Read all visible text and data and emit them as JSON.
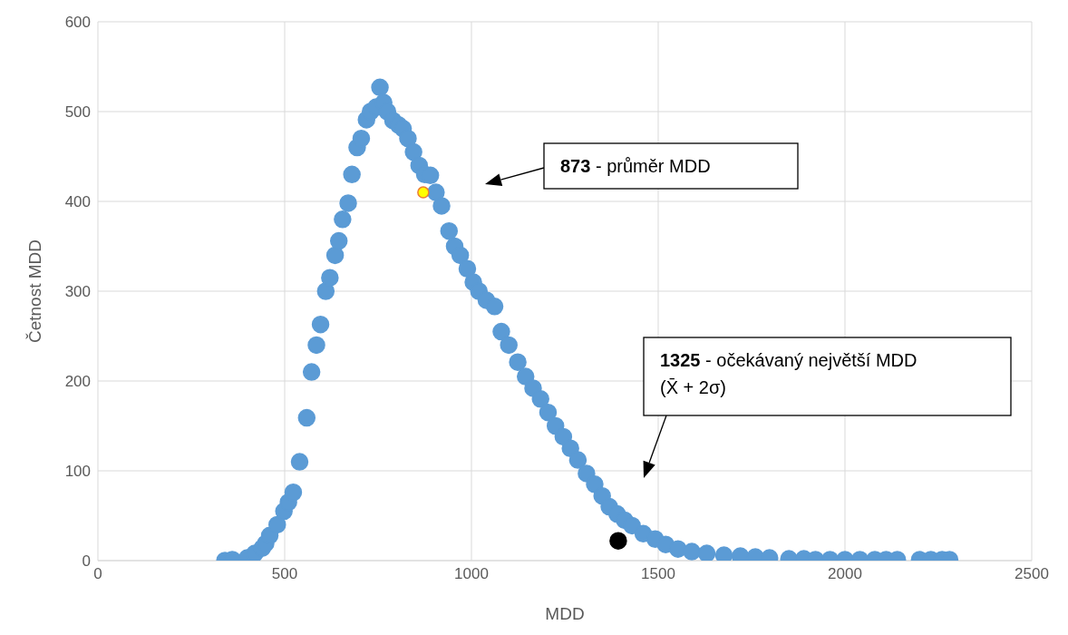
{
  "chart_data": {
    "type": "scatter",
    "xlabel": "MDD",
    "ylabel": "Četnost MDD",
    "xlim": [
      0,
      2500
    ],
    "xticks": [
      0,
      500,
      1000,
      1500,
      2000,
      2500
    ],
    "ylim": [
      0,
      600
    ],
    "yticks": [
      0,
      100,
      200,
      300,
      400,
      500,
      600
    ],
    "grid": true,
    "legend": false,
    "marker": "circle",
    "series": [
      {
        "color": "#5b9bd5",
        "x": [
          340,
          360,
          400,
          420,
          440,
          449,
          460,
          480,
          498,
          510,
          523,
          540,
          559,
          572,
          585,
          596,
          610,
          621,
          635,
          645,
          655,
          670,
          680,
          694,
          705,
          719,
          730,
          745,
          755,
          765,
          775,
          790,
          805,
          817,
          830,
          845,
          860,
          875,
          890,
          905,
          920,
          940,
          955,
          970,
          989,
          1005,
          1020,
          1040,
          1062,
          1080,
          1100,
          1124,
          1145,
          1165,
          1185,
          1205,
          1225,
          1246,
          1265,
          1285,
          1308,
          1330,
          1350,
          1369,
          1390,
          1410,
          1430,
          1460,
          1492,
          1520,
          1553,
          1590,
          1630,
          1676,
          1720,
          1760,
          1798,
          1850,
          1890,
          1921,
          1960,
          2000,
          2040,
          2080,
          2110,
          2140,
          2200,
          2230,
          2260,
          2280
        ],
        "values": [
          0,
          1,
          3,
          8,
          14,
          19,
          28,
          40,
          55,
          65,
          76,
          110,
          159,
          210,
          240,
          263,
          300,
          315,
          340,
          356,
          380,
          398,
          430,
          460,
          470,
          491,
          500,
          505,
          527,
          510,
          500,
          490,
          485,
          481,
          470,
          455,
          440,
          430,
          429,
          410,
          395,
          367,
          350,
          340,
          325,
          310,
          300,
          290,
          283,
          255,
          240,
          221,
          205,
          192,
          180,
          165,
          150,
          138,
          125,
          112,
          97,
          85,
          72,
          60,
          52,
          45,
          39,
          30,
          24,
          18,
          13,
          10,
          8,
          6,
          5,
          4,
          3,
          2,
          2,
          1,
          1,
          1,
          1,
          1,
          1,
          1,
          1,
          1,
          1,
          1
        ]
      },
      {
        "color": "#ffff00",
        "x": [
          871
        ],
        "values": [
          410
        ]
      },
      {
        "color": "#000000",
        "x": [
          1393
        ],
        "values": [
          22
        ]
      }
    ],
    "annotations": [
      "873 - průměr MDD",
      "1325 - očekávaný největší MDD\n(X̄ + 2σ)"
    ]
  }
}
